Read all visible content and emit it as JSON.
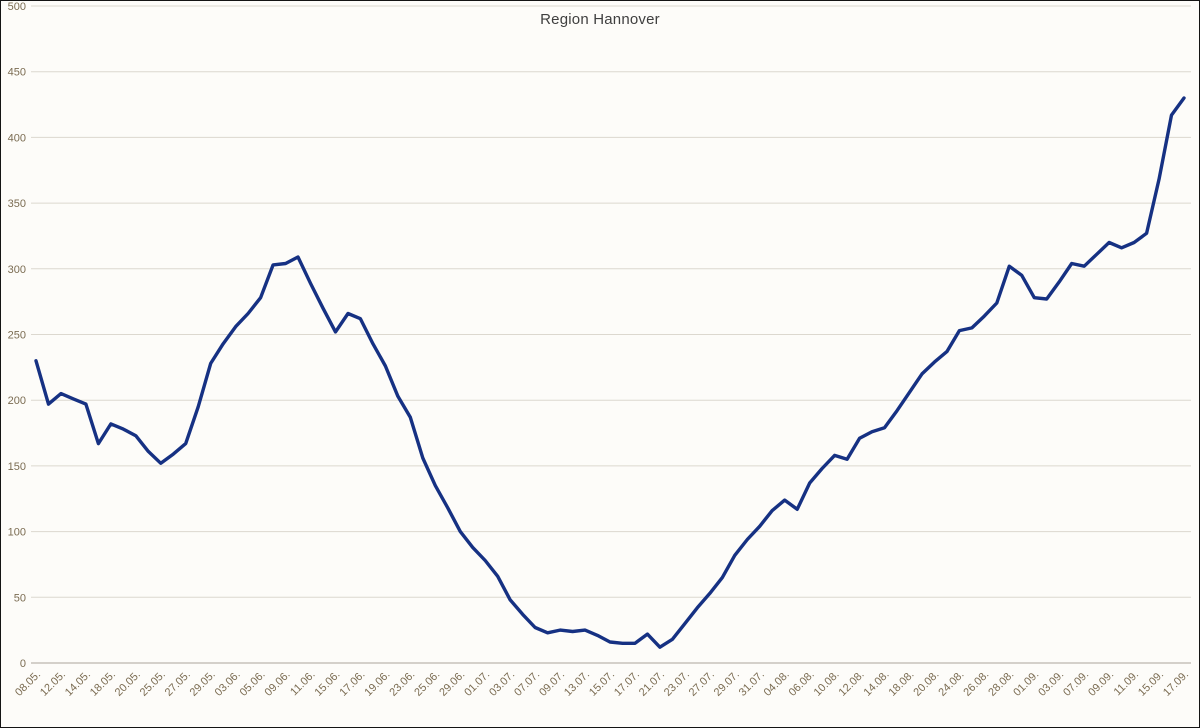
{
  "title": "Region Hannover",
  "colors": {
    "series_line": "#163183",
    "gridline": "#dcd8cf",
    "axis_line": "#aaa59b",
    "tick_label": "#7b6c52",
    "title_text": "#3f3f3f",
    "background": "#fdfcf9",
    "frame_border": "#141414"
  },
  "chart_data": {
    "type": "line",
    "title": "Region Hannover",
    "xlabel": "",
    "ylabel": "",
    "ylim": [
      0,
      500
    ],
    "yticks": [
      0,
      50,
      100,
      150,
      200,
      250,
      300,
      350,
      400,
      450,
      500
    ],
    "grid": "horizontal",
    "legend": "none",
    "x_label_every": 2,
    "x": [
      "08.05.",
      "11.05.",
      "12.05.",
      "13.05.",
      "14.05.",
      "15.05.",
      "18.05.",
      "19.05.",
      "20.05.",
      "22.05.",
      "25.05.",
      "26.05.",
      "27.05.",
      "28.05.",
      "29.05.",
      "02.06.",
      "03.06.",
      "04.06.",
      "05.06.",
      "08.06.",
      "09.06.",
      "10.06.",
      "11.06.",
      "12.06.",
      "15.06.",
      "16.06.",
      "17.06.",
      "18.06.",
      "19.06.",
      "22.06.",
      "23.06.",
      "24.06.",
      "25.06.",
      "26.06.",
      "29.06.",
      "30.06.",
      "01.07.",
      "02.07.",
      "03.07.",
      "06.07.",
      "07.07.",
      "08.07.",
      "09.07.",
      "10.07.",
      "13.07.",
      "14.07.",
      "15.07.",
      "16.07.",
      "17.07.",
      "20.07.",
      "21.07.",
      "22.07.",
      "23.07.",
      "24.07.",
      "27.07.",
      "28.07.",
      "29.07.",
      "30.07.",
      "31.07.",
      "03.08.",
      "04.08.",
      "05.08.",
      "06.08.",
      "07.08.",
      "10.08.",
      "11.08.",
      "12.08.",
      "13.08.",
      "14.08.",
      "17.08.",
      "18.08.",
      "19.08.",
      "20.08.",
      "21.08.",
      "24.08.",
      "25.08.",
      "26.08.",
      "27.08.",
      "28.08.",
      "31.08.",
      "01.09.",
      "02.09.",
      "03.09.",
      "04.09.",
      "07.09.",
      "08.09.",
      "09.09.",
      "10.09.",
      "11.09.",
      "14.09.",
      "15.09.",
      "16.09.",
      "17.09."
    ],
    "series": [
      {
        "name": "Region Hannover",
        "color": "#163183",
        "values": [
          230,
          197,
          205,
          201,
          197,
          167,
          182,
          178,
          173,
          161,
          152,
          159,
          167,
          195,
          228,
          243,
          256,
          266,
          278,
          303,
          304,
          309,
          289,
          270,
          252,
          266,
          262,
          243,
          226,
          203,
          187,
          156,
          135,
          118,
          100,
          88,
          78,
          66,
          48,
          37,
          27,
          23,
          25,
          24,
          25,
          21,
          16,
          15,
          15,
          22,
          12,
          18,
          30,
          42,
          53,
          65,
          82,
          94,
          104,
          116,
          124,
          117,
          137,
          148,
          158,
          155,
          171,
          176,
          179,
          192,
          206,
          220,
          229,
          237,
          253,
          255,
          264,
          274,
          302,
          295,
          278,
          277,
          290,
          304,
          302,
          311,
          320,
          316,
          320,
          327,
          368,
          417,
          430
        ]
      }
    ]
  }
}
